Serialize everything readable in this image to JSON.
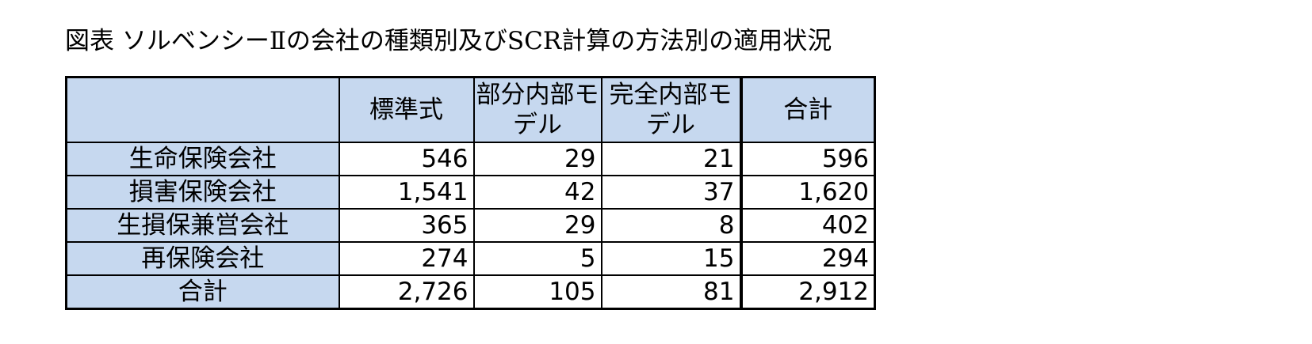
{
  "caption": "図表 ソルベンシーⅡの会社の種類別及びSCR計算の方法別の適用状況",
  "table": {
    "headers": [
      "",
      "標準式",
      "部分内部モデル",
      "完全内部モデル",
      "合計"
    ],
    "rows": [
      {
        "label": "生命保険会社",
        "values": [
          "546",
          "29",
          "21",
          "596"
        ]
      },
      {
        "label": "損害保険会社",
        "values": [
          "1,541",
          "42",
          "37",
          "1,620"
        ]
      },
      {
        "label": "生損保兼営会社",
        "values": [
          "365",
          "29",
          "8",
          "402"
        ]
      },
      {
        "label": "再保険会社",
        "values": [
          "274",
          "5",
          "15",
          "294"
        ]
      }
    ],
    "total": {
      "label": "合計",
      "values": [
        "2,726",
        "105",
        "81",
        "2,912"
      ]
    }
  },
  "colors": {
    "header_fill": "#c6d8ef",
    "border": "#000000"
  }
}
